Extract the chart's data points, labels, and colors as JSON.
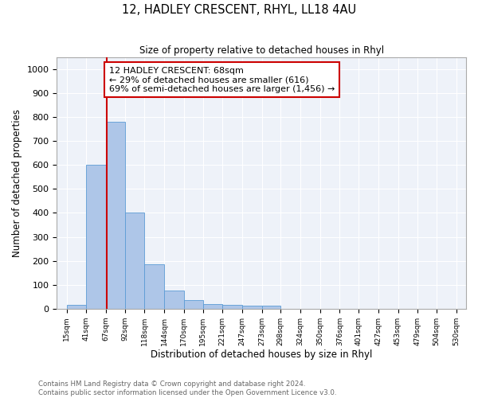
{
  "title1": "12, HADLEY CRESCENT, RHYL, LL18 4AU",
  "title2": "Size of property relative to detached houses in Rhyl",
  "xlabel": "Distribution of detached houses by size in Rhyl",
  "ylabel": "Number of detached properties",
  "bar_edges": [
    15,
    41,
    67,
    92,
    118,
    144,
    170,
    195,
    221,
    247,
    273,
    298,
    324,
    350,
    376,
    401,
    427,
    453,
    479,
    504,
    530
  ],
  "bar_heights": [
    15,
    600,
    780,
    400,
    185,
    75,
    35,
    18,
    15,
    12,
    13,
    0,
    0,
    0,
    0,
    0,
    0,
    0,
    0,
    0
  ],
  "bar_color": "#aec6e8",
  "bar_edgecolor": "#5b9bd5",
  "property_line_x": 68,
  "property_line_color": "#cc0000",
  "annotation_line1": "12 HADLEY CRESCENT: 68sqm",
  "annotation_line2": "← 29% of detached houses are smaller (616)",
  "annotation_line3": "69% of semi-detached houses are larger (1,456) →",
  "annotation_box_color": "#cc0000",
  "annotation_fontsize": 8,
  "ylim": [
    0,
    1050
  ],
  "yticks": [
    0,
    100,
    200,
    300,
    400,
    500,
    600,
    700,
    800,
    900,
    1000
  ],
  "background_color": "#eef2f9",
  "grid_color": "#ffffff",
  "footer_text": "Contains HM Land Registry data © Crown copyright and database right 2024.\nContains public sector information licensed under the Open Government Licence v3.0.",
  "tick_labels": [
    "15sqm",
    "41sqm",
    "67sqm",
    "92sqm",
    "118sqm",
    "144sqm",
    "170sqm",
    "195sqm",
    "221sqm",
    "247sqm",
    "273sqm",
    "298sqm",
    "324sqm",
    "350sqm",
    "376sqm",
    "401sqm",
    "427sqm",
    "453sqm",
    "479sqm",
    "504sqm",
    "530sqm"
  ]
}
